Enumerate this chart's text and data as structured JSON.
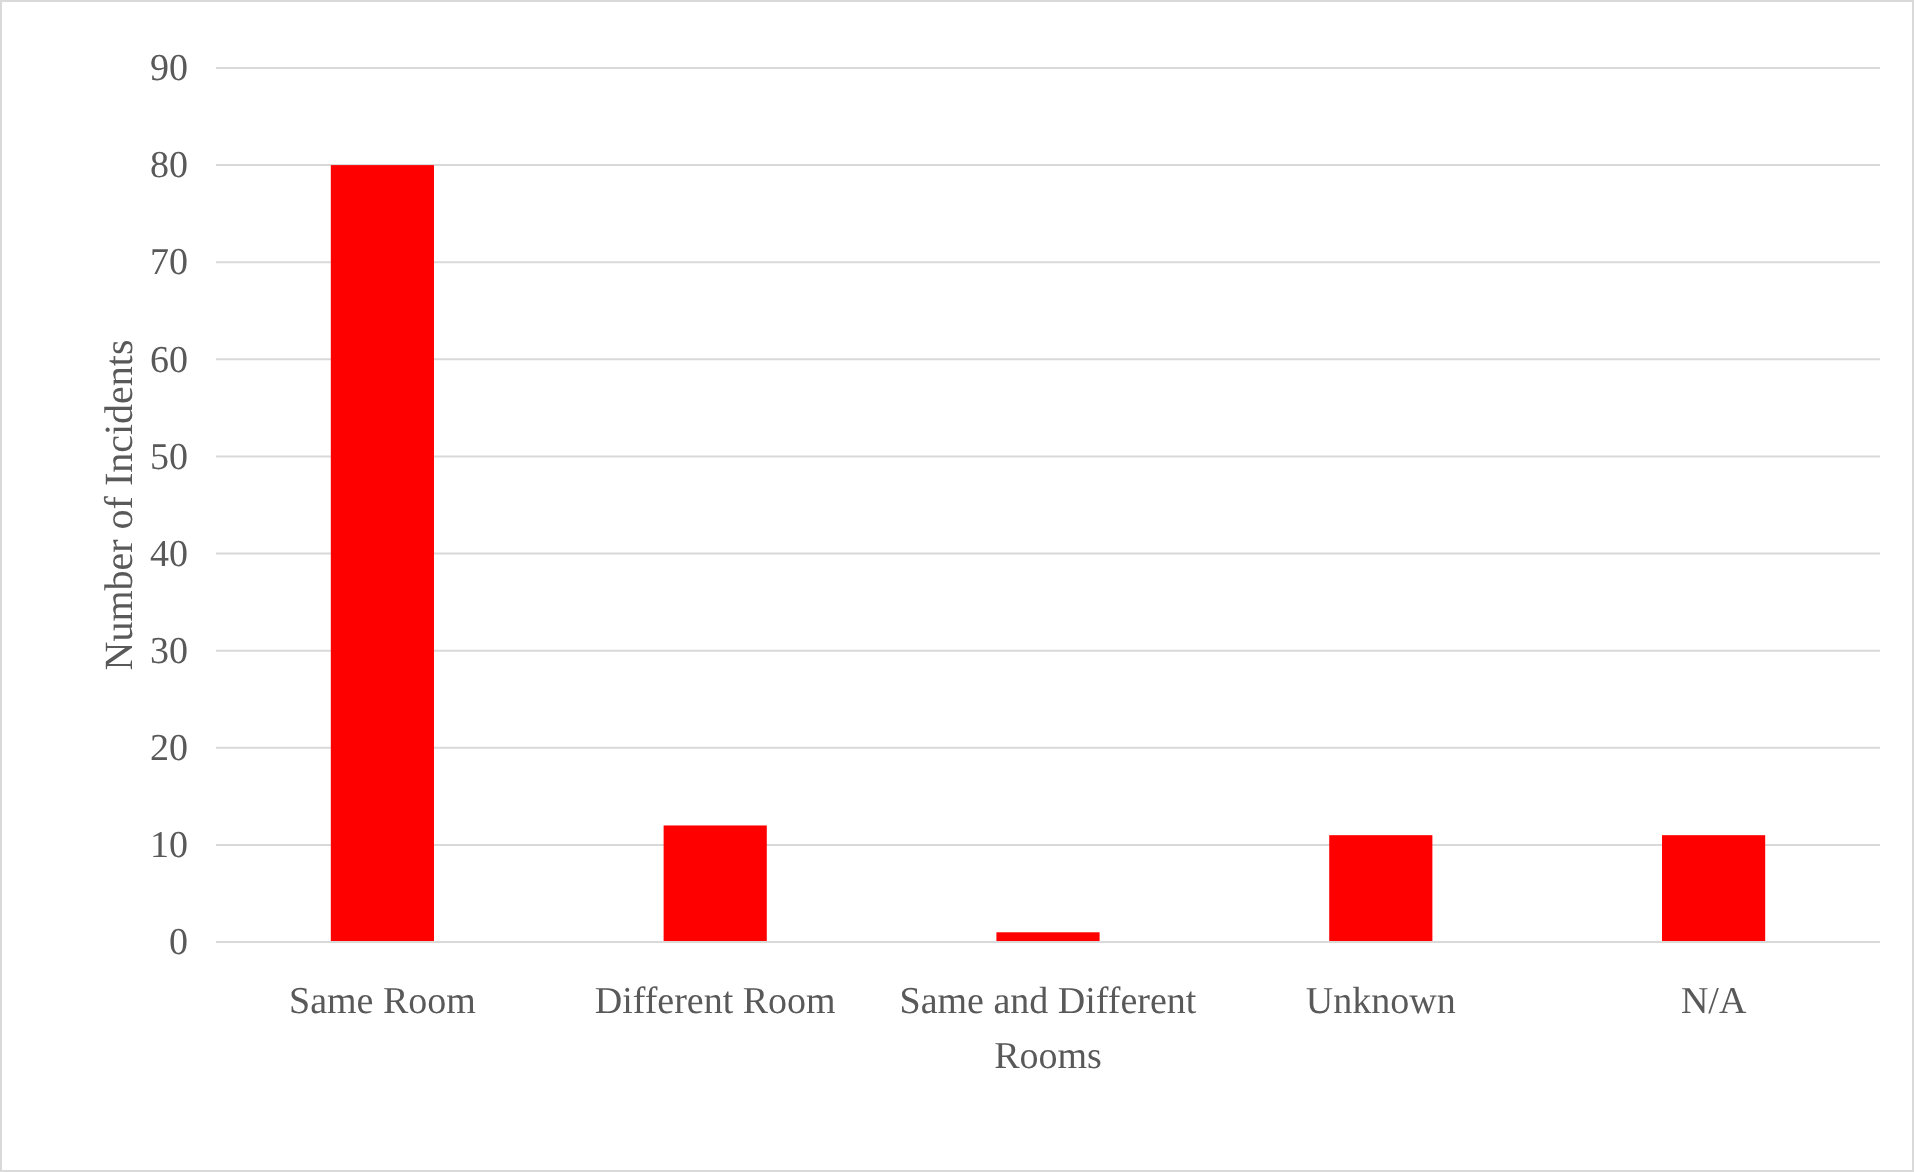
{
  "chart_data": {
    "type": "bar",
    "ylabel": "Number of Incidents",
    "categories": [
      "Same Room",
      "Different Room",
      "Same and Different Rooms",
      "Unknown",
      "N/A"
    ],
    "values": [
      80,
      12,
      1,
      11,
      11
    ],
    "color": "#ff0000",
    "ylim": [
      0,
      90
    ],
    "yticks": [
      0,
      10,
      20,
      30,
      40,
      50,
      60,
      70,
      80,
      90
    ],
    "grid": "y"
  }
}
